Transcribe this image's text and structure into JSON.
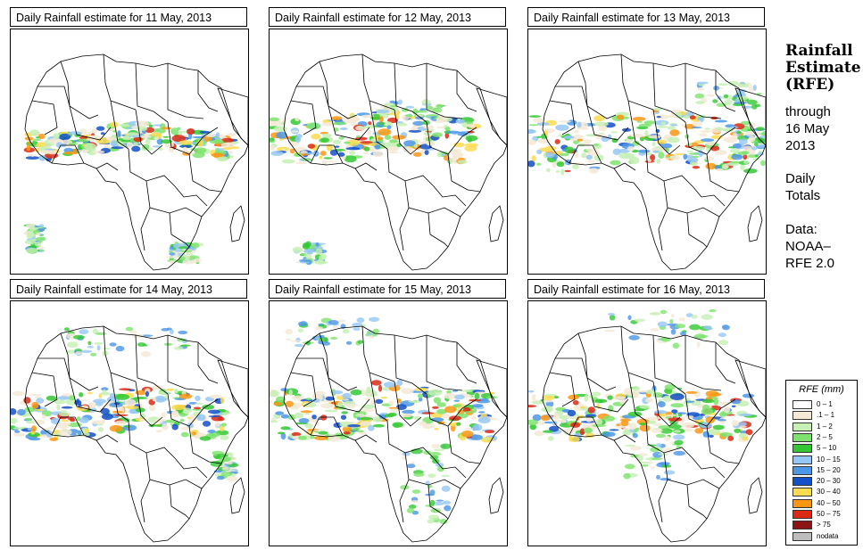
{
  "panels": [
    {
      "title": "Daily Rainfall estimate for  11 May, 2013"
    },
    {
      "title": "Daily Rainfall estimate for  12 May, 2013"
    },
    {
      "title": "Daily Rainfall estimate for  13 May, 2013"
    },
    {
      "title": "Daily Rainfall estimate for  14 May, 2013"
    },
    {
      "title": "Daily Rainfall estimate for  15 May, 2013"
    },
    {
      "title": "Daily Rainfall estimate for  16 May, 2013"
    }
  ],
  "side": {
    "title_line1": "Rainfall",
    "title_line2": "Estimate",
    "title_line3": "(RFE)",
    "through_label": "through",
    "date_line1": "16 May",
    "date_line2": "2013",
    "totals_line1": "Daily",
    "totals_line2": "Totals",
    "data_line1": "Data:",
    "data_line2": "NOAA–",
    "data_line3": "RFE 2.0"
  },
  "legend": {
    "title": "RFE (mm)",
    "items": [
      {
        "label": "0 – 1",
        "color": "#ffffff"
      },
      {
        "label": ".1 – 1",
        "color": "#f5e9d6"
      },
      {
        "label": "1 – 2",
        "color": "#c6f0b4"
      },
      {
        "label": "2 – 5",
        "color": "#7de36e"
      },
      {
        "label": "5 – 10",
        "color": "#33c833"
      },
      {
        "label": "10 – 15",
        "color": "#96c8f5"
      },
      {
        "label": "15 – 20",
        "color": "#4b96e6"
      },
      {
        "label": "20 – 30",
        "color": "#1450c8"
      },
      {
        "label": "30 – 40",
        "color": "#fadc50"
      },
      {
        "label": "40 – 50",
        "color": "#fa9614"
      },
      {
        "label": "50 – 75",
        "color": "#dc2814"
      },
      {
        "label": "> 75",
        "color": "#8c1414"
      },
      {
        "label": "nodata",
        "color": "#bebebe"
      }
    ]
  }
}
